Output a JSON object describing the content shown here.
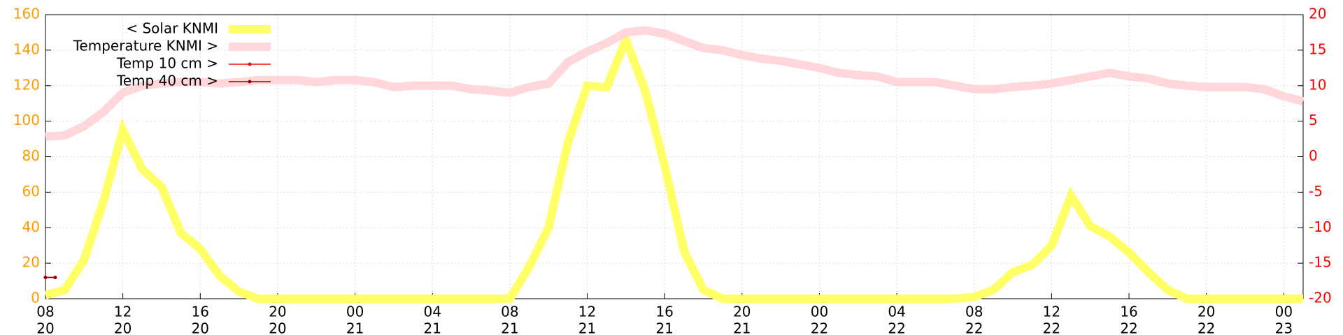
{
  "chart_data": {
    "type": "line",
    "x": [
      0,
      1,
      2,
      3,
      4,
      5,
      6,
      7,
      8,
      9,
      10,
      11,
      12,
      13,
      14,
      15,
      16,
      17,
      18,
      19,
      20,
      21,
      22,
      23,
      24,
      25,
      26,
      27,
      28,
      29,
      30,
      31,
      32,
      33,
      34,
      35,
      36,
      37,
      38,
      39,
      40,
      41,
      42,
      43,
      44,
      45,
      46,
      47,
      48,
      49,
      50,
      51,
      52,
      53,
      54,
      55,
      56,
      57,
      58,
      59,
      60,
      61,
      62,
      63,
      64,
      65
    ],
    "xlim": [
      0,
      65
    ],
    "xticks": [
      {
        "value": 0,
        "label": "08"
      },
      {
        "value": 4,
        "label": "12"
      },
      {
        "value": 8,
        "label": "16"
      },
      {
        "value": 12,
        "label": "20"
      },
      {
        "value": 16,
        "label": "00"
      },
      {
        "value": 20,
        "label": "04"
      },
      {
        "value": 24,
        "label": "08"
      },
      {
        "value": 28,
        "label": "12"
      },
      {
        "value": 32,
        "label": "16"
      },
      {
        "value": 36,
        "label": "20"
      },
      {
        "value": 40,
        "label": "00"
      },
      {
        "value": 44,
        "label": "04"
      },
      {
        "value": 48,
        "label": "08"
      },
      {
        "value": 52,
        "label": "12"
      },
      {
        "value": 56,
        "label": "16"
      },
      {
        "value": 60,
        "label": "20"
      },
      {
        "value": 64,
        "label": "00"
      }
    ],
    "xtick_days": [
      "20",
      "20",
      "20",
      "20",
      "21",
      "21",
      "21",
      "21",
      "21",
      "21",
      "22",
      "22",
      "22",
      "22",
      "22",
      "22",
      "23"
    ],
    "ylim": [
      0,
      160
    ],
    "yticks": [
      0,
      20,
      40,
      60,
      80,
      100,
      120,
      140,
      160
    ],
    "ytick_color": "#ff9900",
    "y2lim": [
      -20,
      20
    ],
    "y2ticks": [
      -20,
      -15,
      -10,
      -5,
      0,
      5,
      10,
      15,
      20
    ],
    "y2tick_color": "#ff0000",
    "grid": true,
    "series": [
      {
        "name": "< Solar KNMI",
        "color": "#ffff66",
        "width": 12,
        "values": [
          2,
          5,
          22,
          55,
          95,
          73,
          63,
          37,
          28,
          13,
          4,
          0,
          0,
          0,
          0,
          0,
          0,
          0,
          0,
          0,
          0,
          0,
          0,
          0,
          0,
          18,
          40,
          88,
          120,
          119,
          146,
          117,
          75,
          27,
          5,
          0,
          0,
          0,
          0,
          0,
          0,
          0,
          0,
          0,
          0,
          0,
          0,
          0,
          1,
          5,
          15,
          19,
          30,
          58,
          41,
          35,
          26,
          15,
          5,
          0,
          0,
          0,
          0,
          0,
          0,
          0
        ]
      },
      {
        "name": "Temperature KNMI >",
        "color": "#ffd6da",
        "width": 12,
        "axis": "y2",
        "values": [
          2.8,
          3.0,
          4.3,
          6.3,
          9.0,
          10.0,
          10.3,
          10.5,
          10.5,
          10.3,
          10.5,
          10.8,
          10.8,
          10.8,
          10.5,
          10.8,
          10.8,
          10.5,
          9.8,
          10.0,
          10.0,
          10.0,
          9.5,
          9.3,
          9.0,
          9.8,
          10.3,
          13.3,
          14.8,
          16.0,
          17.5,
          17.8,
          17.3,
          16.3,
          15.3,
          15.0,
          14.3,
          13.8,
          13.5,
          13.0,
          12.5,
          11.8,
          11.5,
          11.3,
          10.5,
          10.5,
          10.5,
          10.0,
          9.5,
          9.5,
          9.8,
          10.0,
          10.3,
          10.8,
          11.3,
          11.8,
          11.3,
          11.0,
          10.3,
          10.0,
          9.8,
          9.8,
          9.8,
          9.5,
          8.5,
          7.8
        ]
      },
      {
        "name": "Temp 10 cm >",
        "color": "#ee1111",
        "width": 1.5,
        "axis": "y2",
        "x": [
          0,
          0.5
        ],
        "values": [
          -17,
          -17
        ]
      },
      {
        "name": "Temp 40 cm >",
        "color": "#990000",
        "width": 1.5,
        "axis": "y2",
        "x": [
          0,
          0.5
        ],
        "values": [
          -17,
          -17
        ]
      }
    ]
  }
}
